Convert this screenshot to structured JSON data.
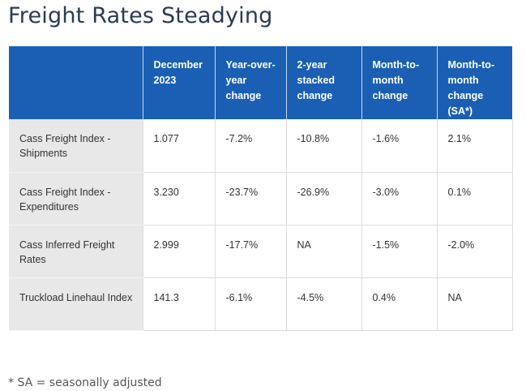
{
  "page": {
    "title": "Freight Rates Steadying",
    "footnote": "* SA = seasonally adjusted"
  },
  "table": {
    "columns": [
      "",
      "December 2023",
      "Year-over-year change",
      "2-year stacked change",
      "Month-to-month change",
      "Month-to-month change (SA*)"
    ],
    "rows": [
      {
        "label": "Cass Freight Index - Shipments",
        "values": [
          "1.077",
          "-7.2%",
          "-10.8%",
          "-1.6%",
          "2.1%"
        ]
      },
      {
        "label": "Cass Freight Index - Expenditures",
        "values": [
          "3.230",
          "-23.7%",
          "-26.9%",
          "-3.0%",
          "0.1%"
        ]
      },
      {
        "label": "Cass Inferred Freight Rates",
        "values": [
          "2.999",
          "-17.7%",
          "NA",
          "-1.5%",
          "-2.0%"
        ]
      },
      {
        "label": "Truckload Linehaul Index",
        "values": [
          "141.3",
          "-6.1%",
          "-4.5%",
          "0.4%",
          "NA"
        ]
      }
    ]
  },
  "colors": {
    "header_bg": "#1a5fb4",
    "label_col_bg": "#e8e8e8",
    "title": "#2b3a55"
  }
}
